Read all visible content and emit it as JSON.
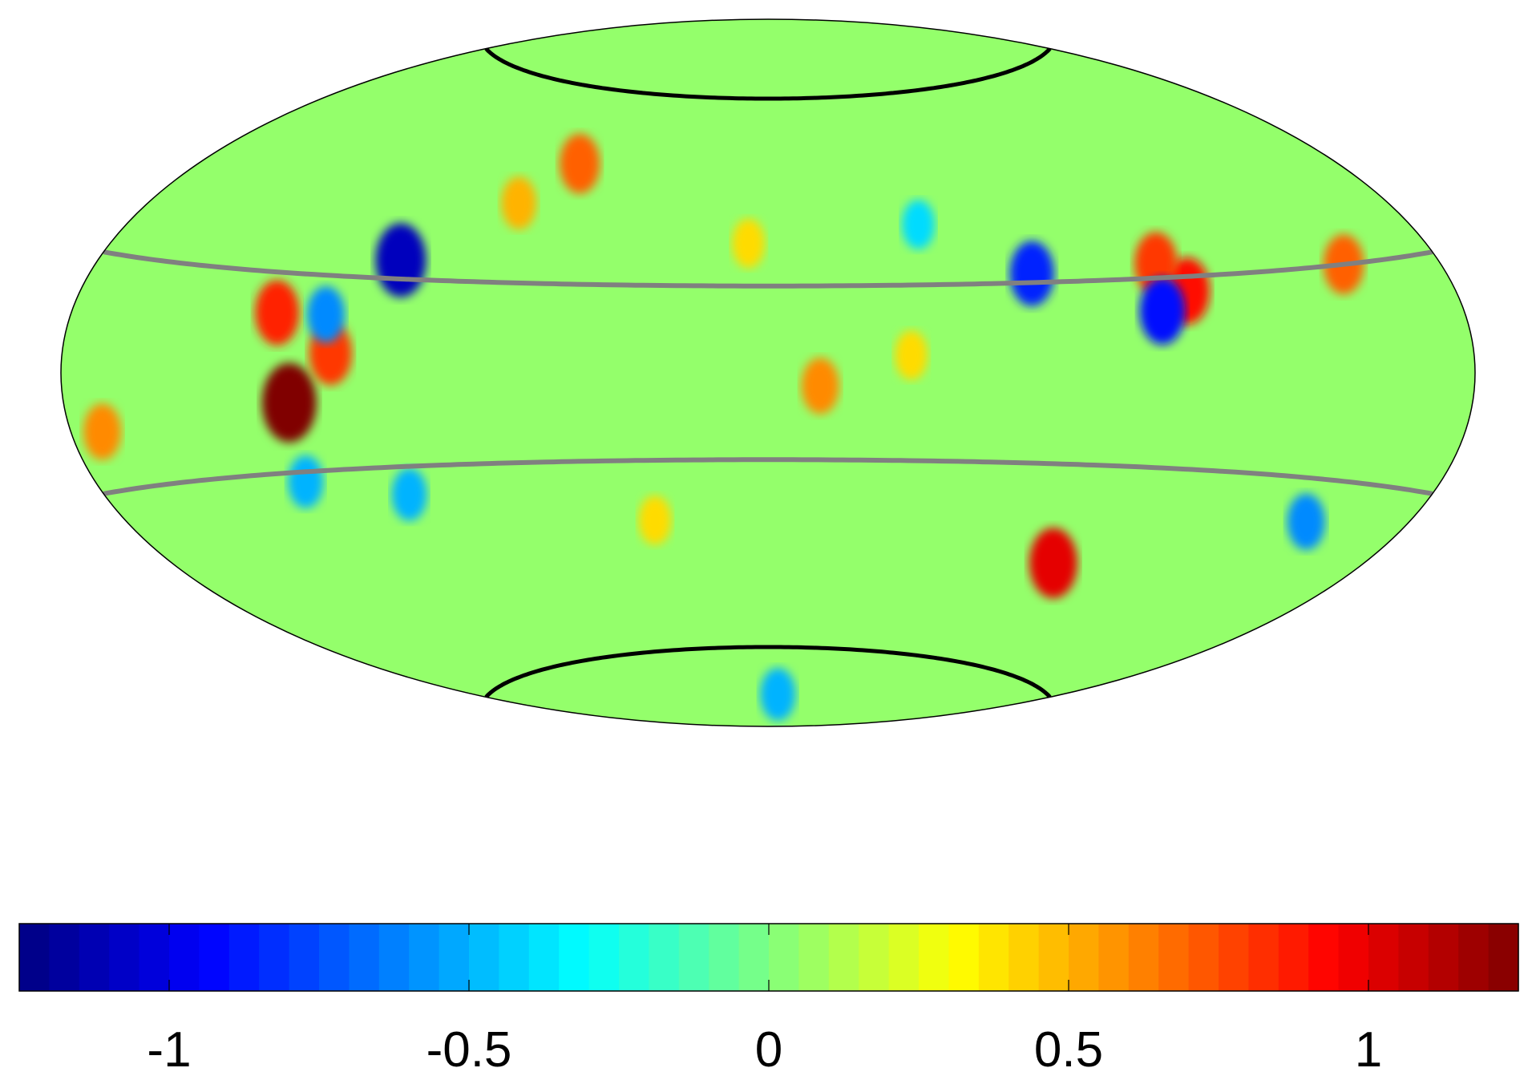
{
  "figure": {
    "projection": "hammer-aitoff",
    "colormap": "jet",
    "outline_color": "#000000",
    "polar_cap_color": "#000000",
    "latitude_line_color": "#808080"
  },
  "colorbar": {
    "range": [
      -1.25,
      1.25
    ],
    "levels": 50,
    "ticks": [
      {
        "value": -1,
        "label": "-1"
      },
      {
        "value": -0.5,
        "label": "-0.5"
      },
      {
        "value": 0,
        "label": "0"
      },
      {
        "value": 0.5,
        "label": "0.5"
      },
      {
        "value": 1,
        "label": "1"
      }
    ]
  },
  "chart_data": {
    "type": "heatmap",
    "projection": "hammer-aitoff",
    "value_range": [
      -1.25,
      1.25
    ],
    "colormap": "jet",
    "background_level": 0.05,
    "features": [
      {
        "lon": 115,
        "lat": -6,
        "value": 1.25
      },
      {
        "lon": 120,
        "lat": 12,
        "value": 0.85
      },
      {
        "lon": 104,
        "lat": 4,
        "value": 0.8
      },
      {
        "lon": 93,
        "lat": 24,
        "value": -1.1
      },
      {
        "lon": 107,
        "lat": 12,
        "value": -0.6
      },
      {
        "lon": 118,
        "lat": -22,
        "value": -0.5
      },
      {
        "lon": 92,
        "lat": -26,
        "value": -0.5
      },
      {
        "lon": -103,
        "lat": 17,
        "value": 0.9
      },
      {
        "lon": -98,
        "lat": 23,
        "value": 0.8
      },
      {
        "lon": -95,
        "lat": 13,
        "value": -0.9
      },
      {
        "lon": -65,
        "lat": 22,
        "value": -0.85
      },
      {
        "lon": -85,
        "lat": -42,
        "value": 1.0
      },
      {
        "lon": -150,
        "lat": 20,
        "value": 0.7
      },
      {
        "lon": -148,
        "lat": -28,
        "value": -0.6
      },
      {
        "lon": -12,
        "lat": -3,
        "value": 0.6
      },
      {
        "lon": -33,
        "lat": 4,
        "value": 0.4
      },
      {
        "lon": 60,
        "lat": 48,
        "value": 0.7
      },
      {
        "lon": 70,
        "lat": 38,
        "value": 0.5
      },
      {
        "lon": -40,
        "lat": 34,
        "value": -0.4
      },
      {
        "lon": 170,
        "lat": -10,
        "value": 0.6
      },
      {
        "lon": 30,
        "lat": -34,
        "value": 0.4
      },
      {
        "lon": -10,
        "lat": -80,
        "value": -0.5
      },
      {
        "lon": 5,
        "lat": 30,
        "value": 0.4
      }
    ],
    "latitude_lines": [
      {
        "lat": 20,
        "style": "gray"
      },
      {
        "lat": -20,
        "style": "gray"
      },
      {
        "lat": 66.5,
        "style": "black"
      },
      {
        "lat": -66.5,
        "style": "black"
      }
    ]
  }
}
